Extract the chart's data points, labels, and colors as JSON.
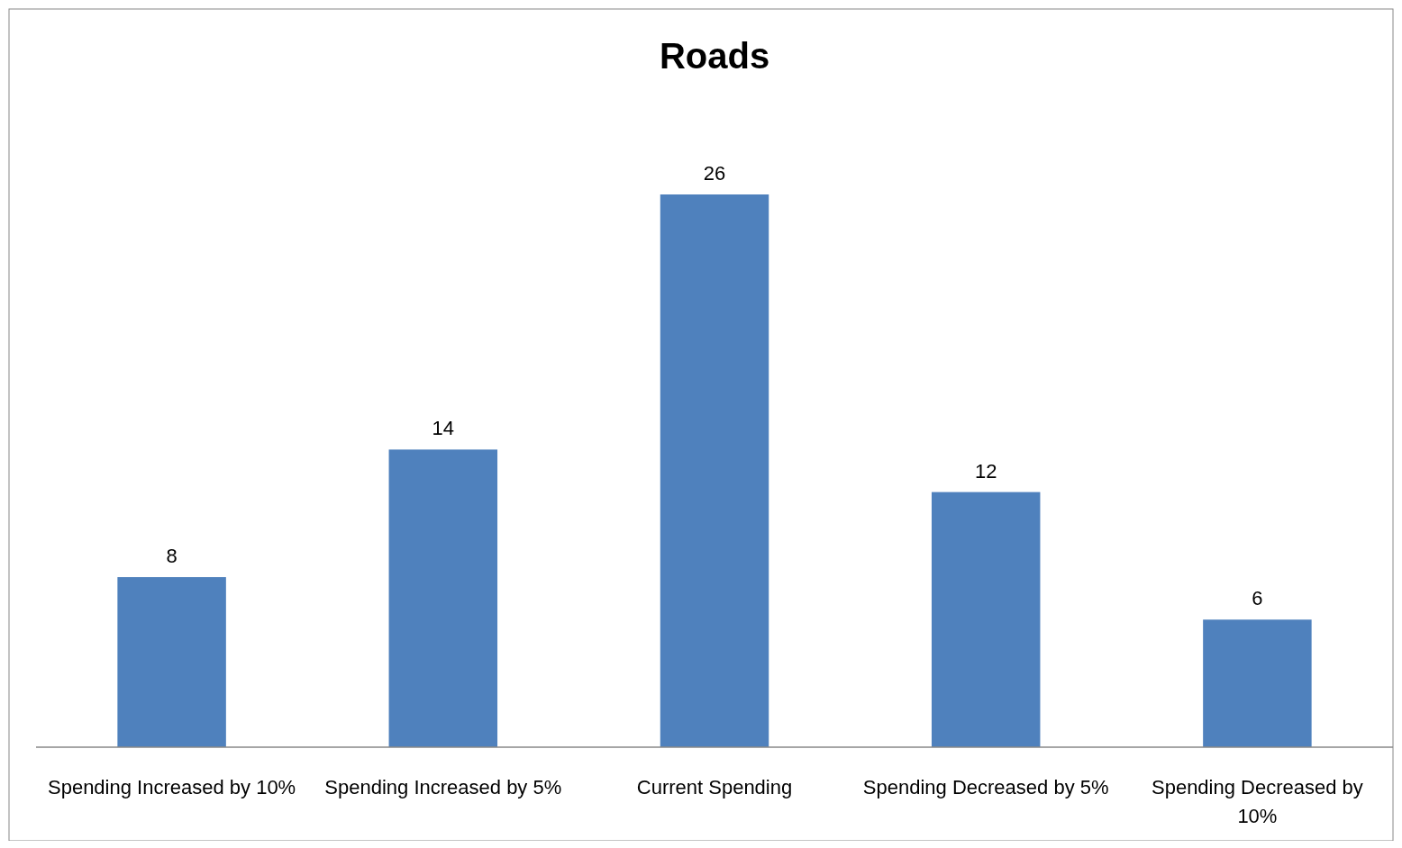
{
  "chart_data": {
    "type": "bar",
    "title": "Roads",
    "categories": [
      "Spending Increased by 10%",
      "Spending Increased by 5%",
      "Current Spending",
      "Spending Decreased by 5%",
      "Spending Decreased by 10%"
    ],
    "values": [
      8,
      14,
      26,
      12,
      6
    ],
    "color": "#4f81bd",
    "data_labels": true
  }
}
